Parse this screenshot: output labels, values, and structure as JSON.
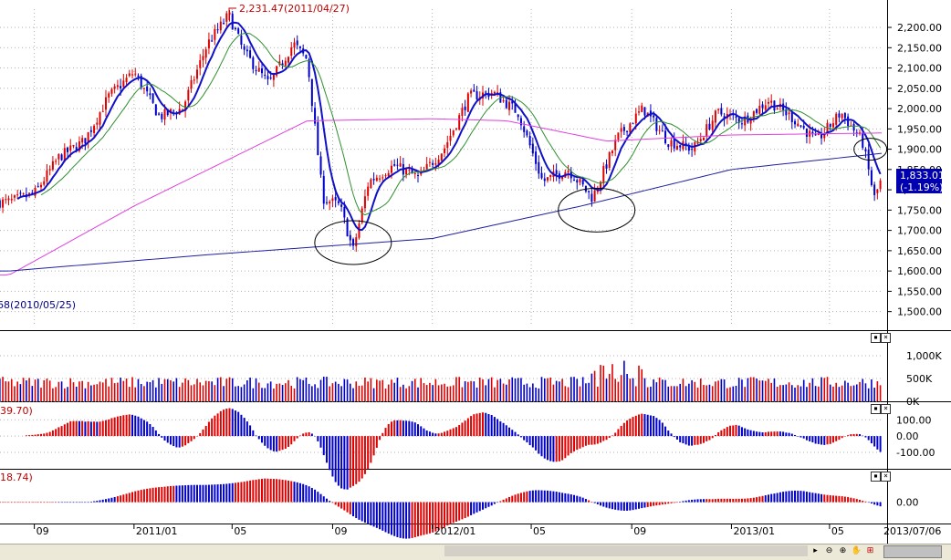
{
  "colors": {
    "up": "#e00000",
    "down": "#0000cc",
    "ma_short": "#1010c8",
    "ma_mid": "#2f8f2f",
    "ma_120": "#e040e0",
    "ma_240": "#2020a0",
    "grid": "#b0b0b0",
    "price_label_bg": "#0000b0"
  },
  "annotations": {
    "high": "2,231.47(2011/04/27)",
    "low_partial": "68(2010/05/25)"
  },
  "price_box": {
    "value": "1,833.01",
    "change": "(-1.19%)"
  },
  "volume_indicator": "",
  "macd_label": "39.70)",
  "osc_label": "18.74)",
  "date_end": "2013/07/06",
  "toolbar": {
    "play_icon": "play-icon",
    "zoom_out_icon": "zoom-out-icon",
    "zoom_in_icon": "zoom-in-icon",
    "hand_icon": "hand-icon",
    "chart_settings_icon": "chart-settings-icon"
  },
  "chart_data": [
    {
      "type": "candlestick",
      "panel": "price",
      "x_ticks": [
        "09",
        "2011/01",
        "05",
        "09",
        "2012/01",
        "05",
        "09",
        "2013/01",
        "05"
      ],
      "y_ticks": [
        "2,200.00",
        "2,150.00",
        "2,100.00",
        "2,050.00",
        "2,000.00",
        "1,950.00",
        "1,900.00",
        "1,850.00",
        "1,800.00",
        "1,750.00",
        "1,700.00",
        "1,650.00",
        "1,600.00",
        "1,550.00",
        "1,500.00"
      ],
      "ylim": [
        1470,
        2245
      ],
      "close_path": [
        [
          "2010-08-01",
          1770
        ],
        [
          "2010-09-01",
          1790
        ],
        [
          "2010-10-01",
          1880
        ],
        [
          "2010-11-01",
          1920
        ],
        [
          "2010-12-01",
          2030
        ],
        [
          "2011-01-01",
          2090
        ],
        [
          "2011-02-01",
          1980
        ],
        [
          "2011-03-01",
          2000
        ],
        [
          "2011-04-01",
          2160
        ],
        [
          "2011-04-27",
          2231
        ],
        [
          "2011-05-15",
          2140
        ],
        [
          "2011-06-15",
          2060
        ],
        [
          "2011-07-15",
          2160
        ],
        [
          "2011-08-01",
          2120
        ],
        [
          "2011-08-20",
          1780
        ],
        [
          "2011-09-10",
          1760
        ],
        [
          "2011-09-26",
          1650
        ],
        [
          "2011-10-15",
          1820
        ],
        [
          "2011-11-15",
          1860
        ],
        [
          "2011-12-15",
          1830
        ],
        [
          "2012-01-15",
          1900
        ],
        [
          "2012-02-15",
          2030
        ],
        [
          "2012-03-15",
          2040
        ],
        [
          "2012-04-15",
          1990
        ],
        [
          "2012-05-15",
          1820
        ],
        [
          "2012-06-15",
          1850
        ],
        [
          "2012-07-15",
          1780
        ],
        [
          "2012-08-15",
          1930
        ],
        [
          "2012-09-15",
          2000
        ],
        [
          "2012-10-15",
          1920
        ],
        [
          "2012-11-15",
          1900
        ],
        [
          "2012-12-15",
          1990
        ],
        [
          "2013-01-15",
          1970
        ],
        [
          "2013-02-15",
          2020
        ],
        [
          "2013-03-15",
          1980
        ],
        [
          "2013-04-15",
          1920
        ],
        [
          "2013-05-15",
          1990
        ],
        [
          "2013-06-10",
          1920
        ],
        [
          "2013-06-25",
          1780
        ],
        [
          "2013-07-05",
          1833
        ]
      ],
      "ma_120_path": [
        [
          "2010-08-01",
          1590
        ],
        [
          "2011-01-01",
          1760
        ],
        [
          "2011-08-01",
          1970
        ],
        [
          "2012-01-01",
          1975
        ],
        [
          "2012-04-01",
          1970
        ],
        [
          "2012-08-01",
          1920
        ],
        [
          "2013-01-01",
          1935
        ],
        [
          "2013-07-05",
          1940
        ]
      ],
      "ma_240_path": [
        [
          "2010-08-01",
          1600
        ],
        [
          "2011-04-01",
          1640
        ],
        [
          "2012-01-01",
          1680
        ],
        [
          "2012-07-01",
          1760
        ],
        [
          "2013-01-01",
          1850
        ],
        [
          "2013-07-05",
          1890
        ]
      ],
      "circled_regions": [
        [
          "2011-09-26",
          1670
        ],
        [
          "2012-07-20",
          1750
        ],
        [
          "2013-06-20",
          1900
        ]
      ],
      "last_close": 1833.01
    },
    {
      "type": "bar",
      "panel": "volume",
      "y_ticks": [
        "1,000K",
        "500K",
        "0K"
      ],
      "ylim": [
        0,
        1200
      ],
      "unit": "K"
    },
    {
      "type": "bar",
      "panel": "macd",
      "y_ticks": [
        "100.00",
        "0.00",
        "-100.00"
      ],
      "ylim": [
        -190,
        180
      ]
    },
    {
      "type": "bar",
      "panel": "oscillator",
      "y_ticks": [
        "0.00"
      ],
      "ylim": [
        -30,
        40
      ]
    }
  ]
}
